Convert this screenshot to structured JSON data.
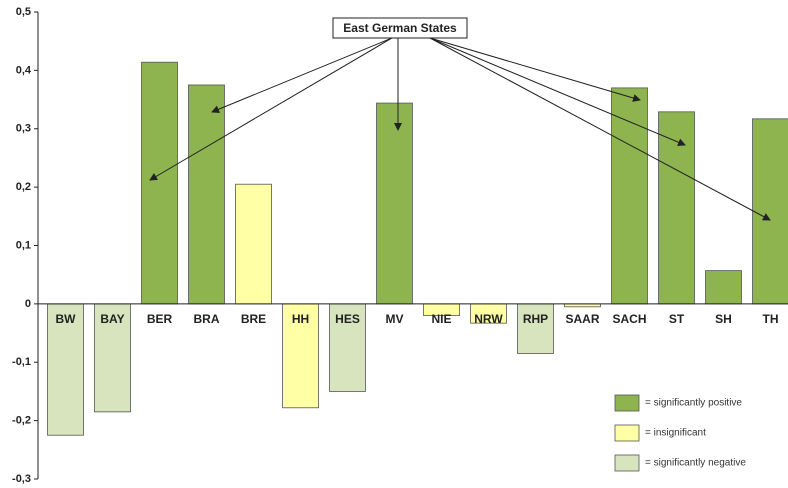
{
  "chart_data": {
    "type": "bar",
    "annotation": "East German States",
    "categories": [
      "BW",
      "BAY",
      "BER",
      "BRA",
      "BRE",
      "HH",
      "HES",
      "MV",
      "NIE",
      "NRW",
      "RHP",
      "SAAR",
      "SACH",
      "ST",
      "SH",
      "TH"
    ],
    "values": [
      -0.225,
      -0.185,
      0.414,
      0.375,
      0.205,
      -0.178,
      -0.15,
      0.344,
      -0.02,
      -0.033,
      -0.085,
      -0.005,
      0.37,
      0.329,
      0.057,
      0.317
    ],
    "bar_colors": [
      "#d7e4bd",
      "#d7e4bd",
      "#8db44e",
      "#8db44e",
      "#ffffa6",
      "#ffffa6",
      "#d7e4bd",
      "#8db44e",
      "#ffffa6",
      "#ffffa6",
      "#d7e4bd",
      "#ffffa6",
      "#8db44e",
      "#8db44e",
      "#8db44e",
      "#8db44e"
    ],
    "ylim": [
      -0.3,
      0.5
    ],
    "yticks": [
      {
        "value": -0.3,
        "label": "-0,3"
      },
      {
        "value": -0.2,
        "label": "-0,2"
      },
      {
        "value": -0.1,
        "label": "-0,1"
      },
      0,
      {
        "value": 0.1,
        "label": "0,1"
      },
      {
        "value": 0.2,
        "label": "0,2"
      },
      {
        "value": 0.3,
        "label": "0,3"
      },
      {
        "value": 0.4,
        "label": "0,4"
      },
      {
        "value": 0.5,
        "label": "0,5"
      }
    ],
    "legend": [
      {
        "label": "= significantly positive",
        "color": "#8db44e"
      },
      {
        "label": "= insignificant",
        "color": "#ffffa6"
      },
      {
        "label": "= significantly negative",
        "color": "#d7e4bd"
      }
    ]
  }
}
